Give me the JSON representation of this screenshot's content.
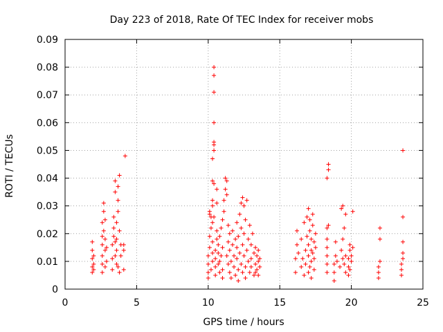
{
  "chart_data": {
    "type": "scatter",
    "title": "Day 223 of 2018, Rate Of TEC Index for receiver mobs",
    "xlabel": "GPS time / hours",
    "ylabel": "ROTI / TECUs",
    "xlim": [
      0,
      25
    ],
    "ylim": [
      0,
      0.09
    ],
    "xticks": [
      0,
      5,
      10,
      15,
      20,
      25
    ],
    "yticks": [
      0,
      0.01,
      0.02,
      0.03,
      0.04,
      0.05,
      0.06,
      0.07,
      0.08,
      0.09
    ],
    "xtick_labels": [
      "0",
      "5",
      "10",
      "15",
      "20",
      "25"
    ],
    "ytick_labels": [
      "0",
      "0.01",
      "0.02",
      "0.03",
      "0.04",
      "0.05",
      "0.06",
      "0.07",
      "0.08",
      "0.09"
    ],
    "grid": true,
    "marker": "+",
    "color": "#ff0000",
    "series": [
      {
        "points": [
          [
            1.9,
            0.006
          ],
          [
            1.9,
            0.008
          ],
          [
            1.9,
            0.011
          ],
          [
            1.9,
            0.014
          ],
          [
            1.9,
            0.017
          ],
          [
            2.0,
            0.007
          ],
          [
            2.0,
            0.009
          ],
          [
            2.0,
            0.012
          ],
          [
            2.6,
            0.006
          ],
          [
            2.6,
            0.009
          ],
          [
            2.6,
            0.012
          ],
          [
            2.6,
            0.016
          ],
          [
            2.6,
            0.019
          ],
          [
            2.6,
            0.024
          ],
          [
            2.7,
            0.028
          ],
          [
            2.7,
            0.031
          ],
          [
            2.7,
            0.021
          ],
          [
            2.8,
            0.008
          ],
          [
            2.8,
            0.014
          ],
          [
            2.8,
            0.018
          ],
          [
            2.8,
            0.025
          ],
          [
            2.9,
            0.01
          ],
          [
            2.9,
            0.015
          ],
          [
            3.3,
            0.007
          ],
          [
            3.3,
            0.011
          ],
          [
            3.3,
            0.016
          ],
          [
            3.4,
            0.019
          ],
          [
            3.4,
            0.022
          ],
          [
            3.4,
            0.026
          ],
          [
            3.5,
            0.012
          ],
          [
            3.5,
            0.035
          ],
          [
            3.5,
            0.039
          ],
          [
            3.6,
            0.009
          ],
          [
            3.6,
            0.014
          ],
          [
            3.6,
            0.018
          ],
          [
            3.6,
            0.024
          ],
          [
            3.7,
            0.028
          ],
          [
            3.7,
            0.032
          ],
          [
            3.7,
            0.037
          ],
          [
            3.8,
            0.041
          ],
          [
            3.8,
            0.021
          ],
          [
            3.8,
            0.006
          ],
          [
            3.9,
            0.016
          ],
          [
            3.9,
            0.012
          ],
          [
            3.7,
            0.008
          ],
          [
            3.5,
            0.017
          ],
          [
            4.1,
            0.007
          ],
          [
            4.1,
            0.014
          ],
          [
            4.1,
            0.016
          ],
          [
            4.2,
            0.048
          ],
          [
            10.0,
            0.004
          ],
          [
            10.0,
            0.006
          ],
          [
            10.0,
            0.009
          ],
          [
            10.0,
            0.012
          ],
          [
            10.1,
            0.015
          ],
          [
            10.1,
            0.019
          ],
          [
            10.1,
            0.027
          ],
          [
            10.1,
            0.028
          ],
          [
            10.2,
            0.022
          ],
          [
            10.2,
            0.026
          ],
          [
            10.2,
            0.007
          ],
          [
            10.3,
            0.01
          ],
          [
            10.3,
            0.013
          ],
          [
            10.3,
            0.017
          ],
          [
            10.3,
            0.024
          ],
          [
            10.3,
            0.03
          ],
          [
            10.3,
            0.032
          ],
          [
            10.3,
            0.039
          ],
          [
            10.3,
            0.047
          ],
          [
            10.4,
            0.05
          ],
          [
            10.4,
            0.052
          ],
          [
            10.4,
            0.053
          ],
          [
            10.4,
            0.06
          ],
          [
            10.4,
            0.071
          ],
          [
            10.4,
            0.077
          ],
          [
            10.4,
            0.08
          ],
          [
            10.4,
            0.038
          ],
          [
            10.4,
            0.026
          ],
          [
            10.5,
            0.005
          ],
          [
            10.5,
            0.008
          ],
          [
            10.5,
            0.011
          ],
          [
            10.5,
            0.014
          ],
          [
            10.6,
            0.018
          ],
          [
            10.6,
            0.021
          ],
          [
            10.6,
            0.031
          ],
          [
            10.6,
            0.036
          ],
          [
            10.7,
            0.009
          ],
          [
            10.7,
            0.013
          ],
          [
            10.7,
            0.016
          ],
          [
            10.8,
            0.006
          ],
          [
            10.8,
            0.01
          ],
          [
            10.8,
            0.019
          ],
          [
            10.9,
            0.012
          ],
          [
            10.9,
            0.022
          ],
          [
            11.0,
            0.004
          ],
          [
            11.0,
            0.007
          ],
          [
            11.0,
            0.015
          ],
          [
            11.0,
            0.025
          ],
          [
            11.1,
            0.032
          ],
          [
            11.1,
            0.028
          ],
          [
            11.2,
            0.036
          ],
          [
            11.2,
            0.04
          ],
          [
            11.3,
            0.034
          ],
          [
            11.3,
            0.039
          ],
          [
            11.3,
            0.012
          ],
          [
            11.4,
            0.017
          ],
          [
            11.4,
            0.009
          ],
          [
            11.4,
            0.023
          ],
          [
            11.5,
            0.006
          ],
          [
            11.5,
            0.02
          ],
          [
            11.5,
            0.014
          ],
          [
            11.6,
            0.004
          ],
          [
            11.6,
            0.01
          ],
          [
            11.7,
            0.016
          ],
          [
            11.7,
            0.021
          ],
          [
            11.8,
            0.008
          ],
          [
            11.8,
            0.012
          ],
          [
            11.9,
            0.018
          ],
          [
            11.9,
            0.005
          ],
          [
            12.0,
            0.011
          ],
          [
            12.0,
            0.015
          ],
          [
            12.0,
            0.024
          ],
          [
            12.1,
            0.003
          ],
          [
            12.1,
            0.007
          ],
          [
            12.1,
            0.019
          ],
          [
            12.2,
            0.013
          ],
          [
            12.2,
            0.027
          ],
          [
            12.3,
            0.009
          ],
          [
            12.3,
            0.022
          ],
          [
            12.3,
            0.031
          ],
          [
            12.4,
            0.006
          ],
          [
            12.4,
            0.016
          ],
          [
            12.4,
            0.033
          ],
          [
            12.5,
            0.012
          ],
          [
            12.5,
            0.02
          ],
          [
            12.5,
            0.03
          ],
          [
            12.6,
            0.004
          ],
          [
            12.6,
            0.008
          ],
          [
            12.6,
            0.025
          ],
          [
            12.7,
            0.014
          ],
          [
            12.7,
            0.032
          ],
          [
            12.8,
            0.01
          ],
          [
            12.8,
            0.018
          ],
          [
            12.9,
            0.006
          ],
          [
            12.9,
            0.023
          ],
          [
            13.0,
            0.011
          ],
          [
            13.0,
            0.016
          ],
          [
            13.0,
            0.008
          ],
          [
            13.1,
            0.02
          ],
          [
            13.2,
            0.005
          ],
          [
            13.2,
            0.013
          ],
          [
            13.3,
            0.006
          ],
          [
            13.3,
            0.009
          ],
          [
            13.4,
            0.012
          ],
          [
            13.4,
            0.007
          ],
          [
            13.5,
            0.01
          ],
          [
            13.5,
            0.014
          ],
          [
            13.6,
            0.008
          ],
          [
            13.6,
            0.011
          ],
          [
            13.3,
            0.015
          ],
          [
            13.5,
            0.005
          ],
          [
            16.1,
            0.006
          ],
          [
            16.1,
            0.011
          ],
          [
            16.2,
            0.016
          ],
          [
            16.2,
            0.021
          ],
          [
            16.3,
            0.013
          ],
          [
            16.5,
            0.008
          ],
          [
            16.5,
            0.018
          ],
          [
            16.6,
            0.011
          ],
          [
            16.7,
            0.005
          ],
          [
            16.7,
            0.024
          ],
          [
            16.8,
            0.009
          ],
          [
            16.8,
            0.014
          ],
          [
            16.9,
            0.019
          ],
          [
            16.9,
            0.026
          ],
          [
            17.0,
            0.006
          ],
          [
            17.0,
            0.012
          ],
          [
            17.0,
            0.016
          ],
          [
            17.0,
            0.029
          ],
          [
            17.1,
            0.008
          ],
          [
            17.1,
            0.021
          ],
          [
            17.1,
            0.025
          ],
          [
            17.2,
            0.004
          ],
          [
            17.2,
            0.01
          ],
          [
            17.2,
            0.014
          ],
          [
            17.2,
            0.018
          ],
          [
            17.3,
            0.023
          ],
          [
            17.3,
            0.013
          ],
          [
            17.3,
            0.027
          ],
          [
            17.4,
            0.007
          ],
          [
            17.4,
            0.017
          ],
          [
            17.4,
            0.011
          ],
          [
            17.5,
            0.02
          ],
          [
            17.5,
            0.015
          ],
          [
            18.3,
            0.006
          ],
          [
            18.3,
            0.009
          ],
          [
            18.3,
            0.012
          ],
          [
            18.3,
            0.015
          ],
          [
            18.3,
            0.018
          ],
          [
            18.3,
            0.022
          ],
          [
            18.3,
            0.04
          ],
          [
            18.4,
            0.043
          ],
          [
            18.4,
            0.045
          ],
          [
            18.4,
            0.023
          ],
          [
            18.8,
            0.003
          ],
          [
            18.8,
            0.006
          ],
          [
            18.8,
            0.009
          ],
          [
            18.9,
            0.012
          ],
          [
            18.9,
            0.017
          ],
          [
            19.0,
            0.01
          ],
          [
            19.2,
            0.008
          ],
          [
            19.3,
            0.014
          ],
          [
            19.3,
            0.029
          ],
          [
            19.4,
            0.011
          ],
          [
            19.4,
            0.018
          ],
          [
            19.4,
            0.03
          ],
          [
            19.5,
            0.009
          ],
          [
            19.5,
            0.022
          ],
          [
            19.6,
            0.006
          ],
          [
            19.6,
            0.012
          ],
          [
            19.6,
            0.027
          ],
          [
            19.8,
            0.005
          ],
          [
            19.8,
            0.008
          ],
          [
            19.8,
            0.011
          ],
          [
            19.9,
            0.014
          ],
          [
            19.9,
            0.016
          ],
          [
            19.9,
            0.007
          ],
          [
            20.0,
            0.01
          ],
          [
            20.0,
            0.012
          ],
          [
            20.1,
            0.015
          ],
          [
            20.1,
            0.028
          ],
          [
            21.9,
            0.004
          ],
          [
            21.9,
            0.006
          ],
          [
            21.9,
            0.008
          ],
          [
            22.0,
            0.01
          ],
          [
            22.0,
            0.018
          ],
          [
            22.0,
            0.022
          ],
          [
            23.5,
            0.005
          ],
          [
            23.5,
            0.007
          ],
          [
            23.5,
            0.009
          ],
          [
            23.6,
            0.011
          ],
          [
            23.6,
            0.013
          ],
          [
            23.6,
            0.017
          ],
          [
            23.6,
            0.026
          ],
          [
            23.6,
            0.05
          ]
        ]
      }
    ]
  }
}
